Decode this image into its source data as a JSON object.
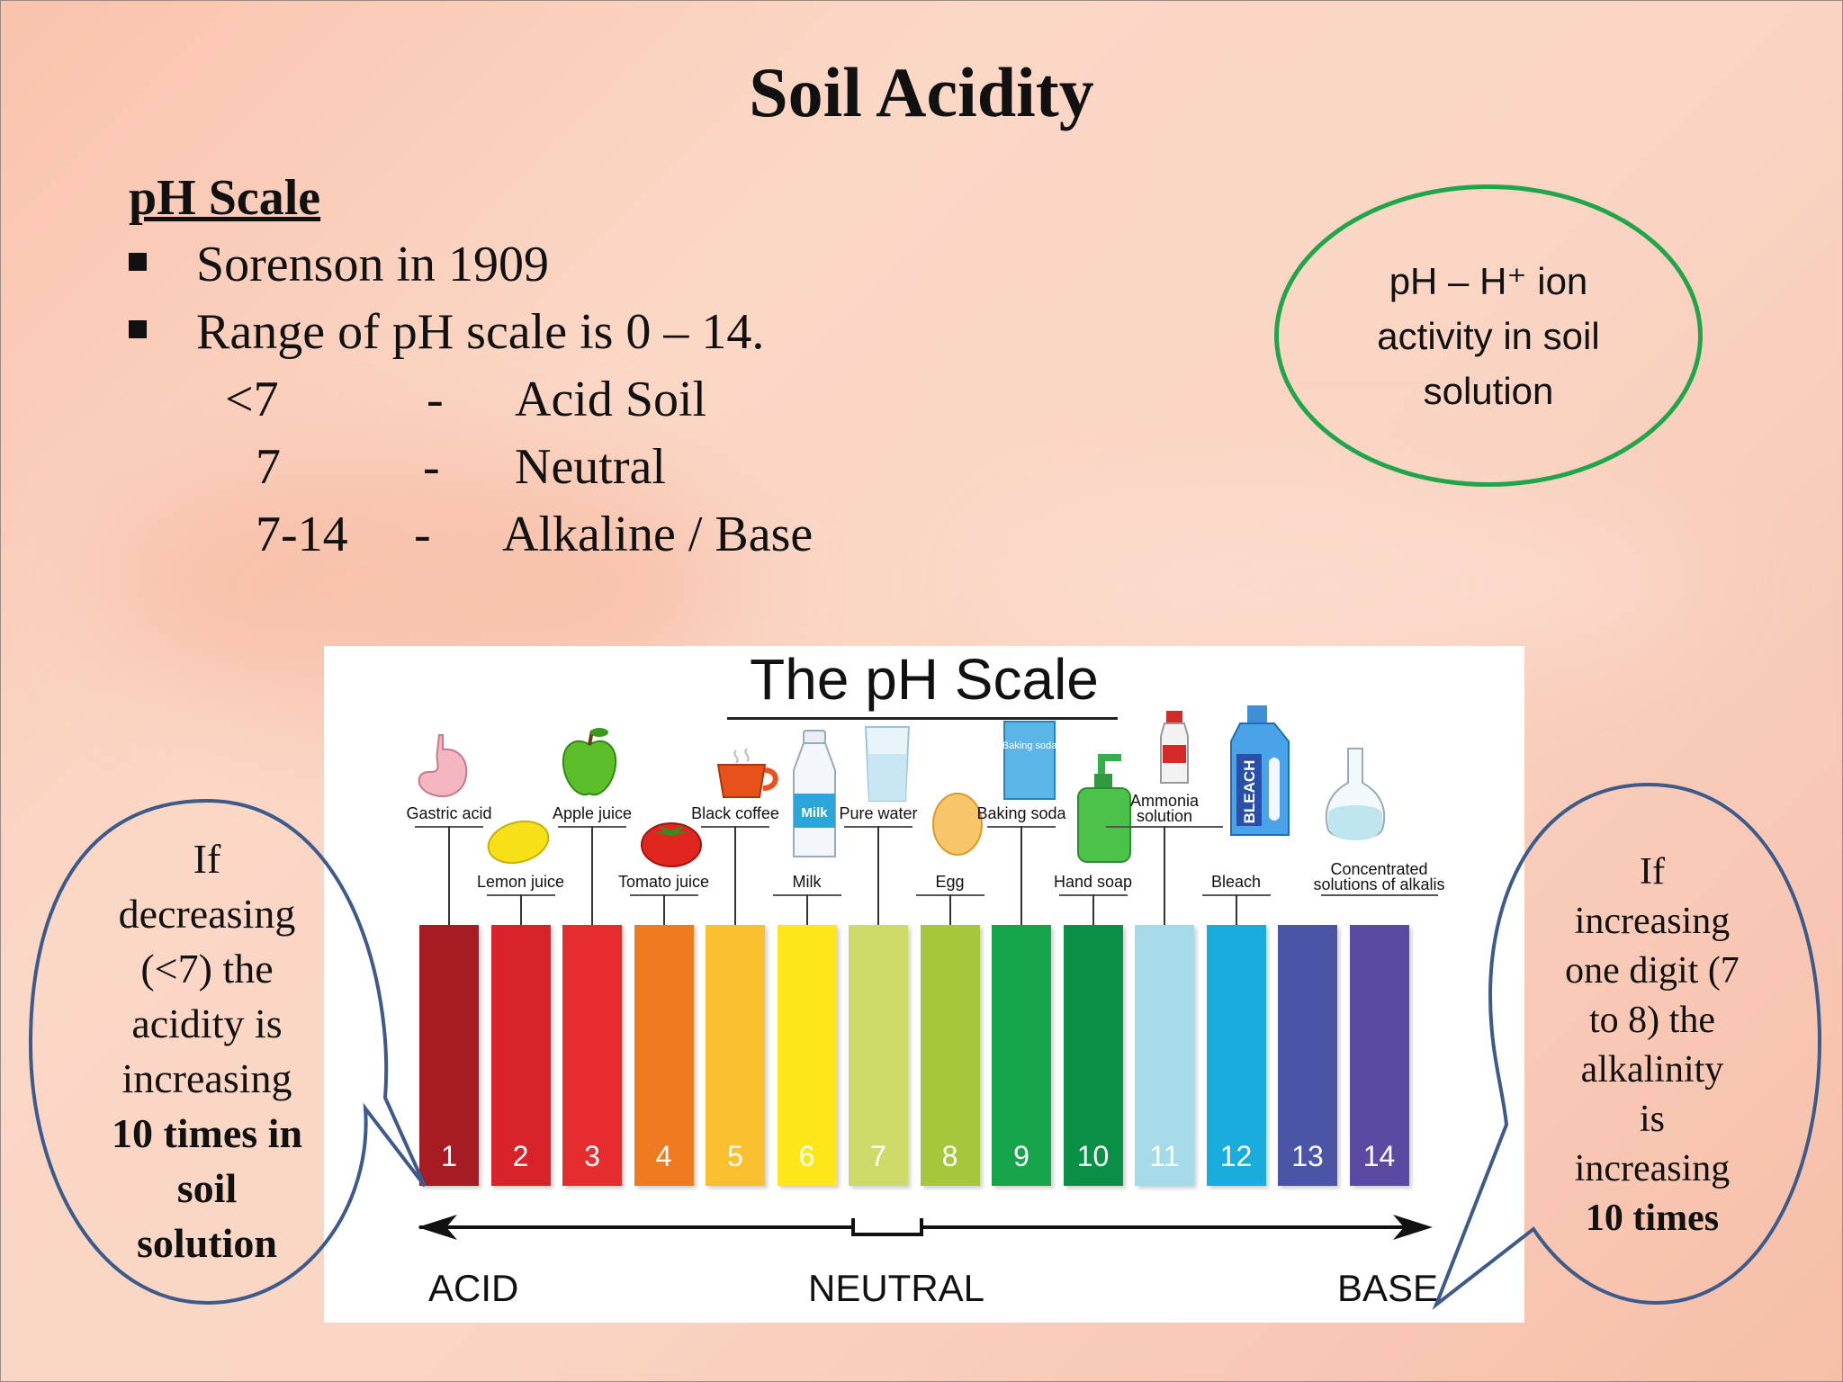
{
  "slide": {
    "title": "Soil Acidity",
    "subtitle": "pH Scale",
    "bullets": [
      "Sorenson in 1909",
      "Range of pH scale is 0 – 14."
    ],
    "rows": [
      {
        "range": "<7",
        "dash": "-",
        "meaning": "Acid Soil"
      },
      {
        "range": "7",
        "dash": "-",
        "meaning": "Neutral"
      },
      {
        "range": "7-14",
        "dash": "-",
        "meaning": "Alkaline / Base"
      }
    ],
    "definition_lines": [
      "pH – H⁺ ion",
      "activity in soil",
      "solution"
    ]
  },
  "left_bubble": {
    "lines": [
      "If",
      "decreasing",
      "(<7) the",
      "acidity is",
      "increasing"
    ],
    "bold_lines": [
      "10 times in",
      "soil",
      "solution"
    ]
  },
  "right_bubble": {
    "lines": [
      "If",
      "increasing",
      "one digit (7",
      "to 8) the",
      "alkalinity",
      "is",
      "increasing"
    ],
    "bold_lines": [
      "10 times"
    ]
  },
  "ph_chart": {
    "title": "The pH Scale",
    "axis": {
      "left": "ACID",
      "middle": "NEUTRAL",
      "right": "BASE"
    },
    "levels": [
      {
        "value": "1",
        "color": "#a61c22"
      },
      {
        "value": "2",
        "color": "#d9232a"
      },
      {
        "value": "3",
        "color": "#e52c2e"
      },
      {
        "value": "4",
        "color": "#f07a1f"
      },
      {
        "value": "5",
        "color": "#fbc02d"
      },
      {
        "value": "6",
        "color": "#fde619"
      },
      {
        "value": "7",
        "color": "#cddc69"
      },
      {
        "value": "8",
        "color": "#a6c73c"
      },
      {
        "value": "9",
        "color": "#17a54c"
      },
      {
        "value": "10",
        "color": "#0a8f47"
      },
      {
        "value": "11",
        "color": "#a5dbe8"
      },
      {
        "value": "12",
        "color": "#18addd"
      },
      {
        "value": "13",
        "color": "#4a55a5"
      },
      {
        "value": "14",
        "color": "#5b4aa1"
      }
    ],
    "substances": [
      {
        "name": "Gastric acid",
        "level": 1,
        "tier": "high",
        "icon": "stomach-icon"
      },
      {
        "name": "Lemon juice",
        "level": 2,
        "tier": "low",
        "icon": "lemon-icon"
      },
      {
        "name": "Apple juice",
        "level": 3,
        "tier": "high",
        "icon": "apple-icon"
      },
      {
        "name": "Tomato juice",
        "level": 4,
        "tier": "low",
        "icon": "tomato-icon"
      },
      {
        "name": "Black coffee",
        "level": 5,
        "tier": "high",
        "icon": "coffee-cup-icon"
      },
      {
        "name": "Milk",
        "level": 6,
        "tier": "low",
        "icon": "milk-bottle-icon"
      },
      {
        "name": "Pure water",
        "level": 7,
        "tier": "high",
        "icon": "water-glass-icon"
      },
      {
        "name": "Egg",
        "level": 8,
        "tier": "low",
        "icon": "egg-icon"
      },
      {
        "name": "Baking soda",
        "level": 9,
        "tier": "high",
        "icon": "baking-soda-box-icon"
      },
      {
        "name": "Hand soap",
        "level": 10,
        "tier": "low",
        "icon": "soap-dispenser-icon"
      },
      {
        "name": "Ammonia\nsolution",
        "level": 11,
        "tier": "high",
        "icon": "ammonia-bottle-icon"
      },
      {
        "name": "Bleach",
        "level": 12,
        "tier": "low",
        "icon": "bleach-bottle-icon"
      },
      {
        "name": "Concentrated\nsolutions of alkalis",
        "level": 14,
        "tier": "low",
        "icon": "flask-icon"
      }
    ],
    "icon_texts": {
      "milk": "Milk",
      "baking_soda": "Baking soda",
      "bleach": "BLEACH"
    }
  }
}
